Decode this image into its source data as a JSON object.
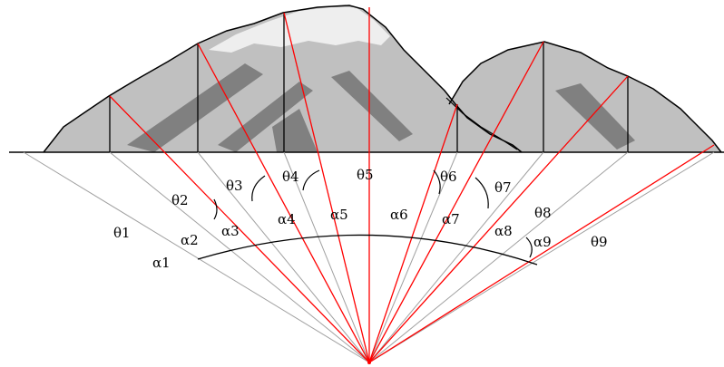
{
  "labels": {
    "theta1": "θ1",
    "theta2": "θ2",
    "theta3": "θ3",
    "theta4": "θ4",
    "theta5": "θ5",
    "theta6": "θ6",
    "theta7": "θ7",
    "theta8": "θ8",
    "theta9": "θ9",
    "alpha1": "α1",
    "alpha2": "α2",
    "alpha3": "α3",
    "alpha4": "α4",
    "alpha5": "α5",
    "alpha6": "α6",
    "alpha7": "α7",
    "alpha8": "α8",
    "alpha9": "α9"
  },
  "colors": {
    "ray": "#ff0000",
    "guide": "#a0a0a0",
    "outline": "#000000",
    "terrain_light": "#c0c0c0",
    "terrain_shadow": "#808080",
    "terrain_snow": "#eeeeee"
  }
}
